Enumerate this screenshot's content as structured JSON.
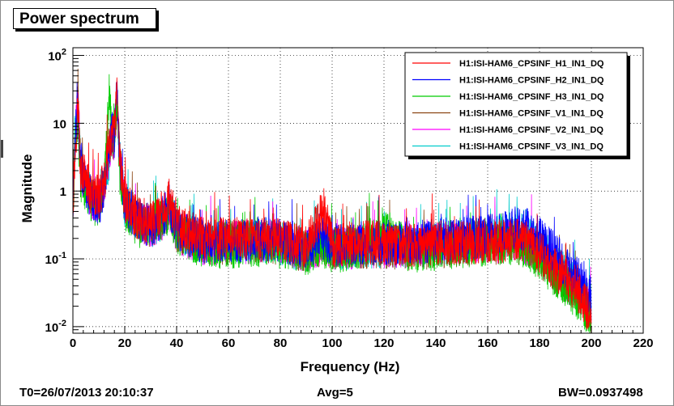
{
  "window": {
    "title": "Power spectrum"
  },
  "footer": {
    "t0": "T0=26/07/2013 20:10:37",
    "avg": "Avg=5",
    "bw": "BW=0.0937498"
  },
  "chart_data": {
    "type": "line",
    "title": "",
    "xlabel": "Frequency (Hz)",
    "ylabel": "Magnitude",
    "xlim": [
      0,
      220
    ],
    "ylim": [
      0.008,
      130
    ],
    "y_scale": "log",
    "grid": true,
    "legend_position": "top-right",
    "x_ticks": [
      "0",
      "20",
      "40",
      "60",
      "80",
      "100",
      "120",
      "140",
      "160",
      "180",
      "200",
      "220"
    ],
    "x_tick_values": [
      0,
      20,
      40,
      60,
      80,
      100,
      120,
      140,
      160,
      180,
      200,
      220
    ],
    "y_ticks": [
      {
        "value": 0.01,
        "base": "10",
        "exp": "-2"
      },
      {
        "value": 0.1,
        "base": "10",
        "exp": "-1"
      },
      {
        "value": 1,
        "base": "1",
        "exp": ""
      },
      {
        "value": 10,
        "base": "10",
        "exp": ""
      },
      {
        "value": 100,
        "base": "10",
        "exp": "2"
      }
    ],
    "x": [
      0,
      1,
      2,
      3,
      5,
      7,
      10,
      12,
      14,
      15,
      16,
      17,
      18,
      20,
      25,
      30,
      35,
      37,
      40,
      50,
      60,
      70,
      80,
      90,
      97,
      100,
      110,
      120,
      130,
      140,
      150,
      160,
      165,
      170,
      175,
      180,
      185,
      190,
      195,
      200
    ],
    "series": [
      {
        "name": "H1:ISI-HAM6_CPSINF_H1_IN1_DQ",
        "color": "#ff0000",
        "values": [
          0.6,
          5,
          20,
          2,
          1.5,
          0.9,
          0.8,
          1.5,
          4,
          6,
          8,
          25,
          3,
          0.7,
          0.4,
          0.35,
          0.5,
          0.8,
          0.3,
          0.2,
          0.2,
          0.2,
          0.2,
          0.15,
          0.55,
          0.15,
          0.18,
          0.17,
          0.16,
          0.17,
          0.17,
          0.18,
          0.18,
          0.2,
          0.18,
          0.13,
          0.08,
          0.05,
          0.03,
          0.015
        ]
      },
      {
        "name": "H1:ISI-HAM6_CPSINF_H2_IN1_DQ",
        "color": "#0000ff",
        "values": [
          0.5,
          10,
          15,
          2,
          1.2,
          0.8,
          0.6,
          1.2,
          3,
          8,
          6,
          40,
          3,
          0.6,
          0.4,
          0.3,
          0.45,
          0.7,
          0.28,
          0.18,
          0.18,
          0.19,
          0.19,
          0.14,
          0.2,
          0.15,
          0.17,
          0.17,
          0.17,
          0.19,
          0.2,
          0.22,
          0.24,
          0.28,
          0.27,
          0.2,
          0.13,
          0.08,
          0.05,
          0.025
        ]
      },
      {
        "name": "H1:ISI-HAM6_CPSINF_H3_IN1_DQ",
        "color": "#00cc00",
        "values": [
          0.4,
          8,
          10,
          1.5,
          1.0,
          0.7,
          0.6,
          1.0,
          30,
          10,
          5,
          30,
          2,
          0.5,
          0.3,
          0.3,
          0.4,
          0.5,
          0.25,
          0.15,
          0.15,
          0.16,
          0.15,
          0.12,
          0.15,
          0.13,
          0.14,
          0.3,
          0.13,
          0.14,
          0.15,
          0.16,
          0.16,
          0.17,
          0.15,
          0.1,
          0.06,
          0.04,
          0.025,
          0.012
        ]
      },
      {
        "name": "H1:ISI-HAM6_CPSINF_V1_IN1_DQ",
        "color": "#8b4513",
        "values": [
          0.7,
          6,
          30,
          2.5,
          1.5,
          0.9,
          0.7,
          1.2,
          5,
          5,
          7,
          20,
          3,
          0.6,
          0.4,
          0.3,
          0.45,
          0.6,
          0.27,
          0.17,
          0.17,
          0.18,
          0.17,
          0.13,
          0.17,
          0.14,
          0.15,
          0.15,
          0.14,
          0.15,
          0.16,
          0.17,
          0.17,
          0.18,
          0.16,
          0.11,
          0.07,
          0.045,
          0.028,
          0.014
        ]
      },
      {
        "name": "H1:ISI-HAM6_CPSINF_V2_IN1_DQ",
        "color": "#ff00ff",
        "values": [
          0.6,
          7,
          25,
          2,
          1.3,
          0.8,
          0.7,
          1.1,
          4,
          6,
          6,
          22,
          3,
          0.6,
          0.35,
          0.3,
          0.4,
          0.6,
          0.25,
          0.17,
          0.17,
          0.18,
          0.17,
          0.13,
          0.17,
          0.14,
          0.15,
          0.15,
          0.15,
          0.16,
          0.17,
          0.18,
          0.18,
          0.19,
          0.17,
          0.12,
          0.08,
          0.05,
          0.03,
          0.015
        ]
      },
      {
        "name": "H1:ISI-HAM6_CPSINF_V3_IN1_DQ",
        "color": "#00cccc",
        "values": [
          0.5,
          9,
          18,
          1.8,
          1.2,
          0.8,
          0.6,
          1.0,
          3,
          7,
          7,
          28,
          3,
          0.6,
          0.35,
          0.3,
          0.4,
          0.6,
          0.26,
          0.17,
          0.17,
          0.18,
          0.17,
          0.13,
          0.17,
          0.14,
          0.15,
          0.15,
          0.15,
          0.17,
          0.18,
          0.2,
          0.21,
          0.23,
          0.21,
          0.15,
          0.09,
          0.06,
          0.035,
          0.018
        ]
      }
    ]
  }
}
